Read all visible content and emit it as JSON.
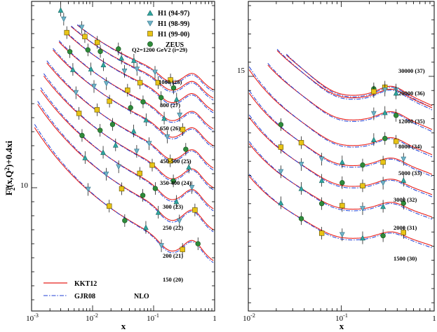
{
  "chart_data": [
    {
      "type": "line",
      "panel": "left",
      "xscale": "log",
      "xlim": [
        0.001,
        1
      ],
      "x_ticks": [
        "10^-3",
        "10^-2",
        "10^-1",
        "1"
      ],
      "y_ticks": [
        {
          "value": 10,
          "label": "10"
        }
      ],
      "xlabel": "x",
      "ylabel": "F2p(x,Q2)+0.4xi",
      "series_labels": [
        {
          "label": "Q2=1200 GeV2 (i=29)",
          "i": 29
        },
        {
          "label": "1000 (28)",
          "i": 28
        },
        {
          "label": "800 (27)",
          "i": 27
        },
        {
          "label": "650 (26)",
          "i": 26
        },
        {
          "label": "450-500 (25)",
          "i": 25
        },
        {
          "label": "350-400 (24)",
          "i": 24
        },
        {
          "label": "300 (23)",
          "i": 23
        },
        {
          "label": "250 (22)",
          "i": 22
        },
        {
          "label": "200 (21)",
          "i": 21
        },
        {
          "label": "150 (20)",
          "i": 20
        }
      ],
      "legend_data": [
        {
          "name": "H1 (94-97)",
          "marker": "triangle-up",
          "color": "#2fa7a1"
        },
        {
          "name": "H1 (98-99)",
          "marker": "triangle-down",
          "color": "#6fb3c8"
        },
        {
          "name": "H1 (99-00)",
          "marker": "square",
          "color": "#e8c416"
        },
        {
          "name": "ZEUS",
          "marker": "circle",
          "color": "#2e8b3a"
        }
      ],
      "legend_fits": [
        {
          "name": "KKT12",
          "style": "solid",
          "color": "#e8201c"
        },
        {
          "name": "GJR08",
          "style": "dash-dot",
          "color": "#1f3fd6"
        }
      ],
      "annotation": "NLO"
    },
    {
      "type": "line",
      "panel": "right",
      "xscale": "log",
      "xlim": [
        0.01,
        1
      ],
      "x_ticks": [
        "10^-2",
        "10^-1",
        "1"
      ],
      "y_ticks": [
        {
          "value": 15,
          "label": "15"
        }
      ],
      "xlabel": "x",
      "series_labels": [
        {
          "label": "30000 (37)",
          "i": 37
        },
        {
          "label": "20000 (36)",
          "i": 36
        },
        {
          "label": "12000 (35)",
          "i": 35
        },
        {
          "label": "8000 (34)",
          "i": 34
        },
        {
          "label": "5000 (33)",
          "i": 33
        },
        {
          "label": "3000 (32)",
          "i": 32
        },
        {
          "label": "2000 (31)",
          "i": 31
        },
        {
          "label": "1500 (30)",
          "i": 30
        }
      ]
    }
  ],
  "colors": {
    "kkt": "#e8201c",
    "gjr": "#1f3fd6",
    "h1_9497": "#2fa7a1",
    "h1_9899": "#6fb3c8",
    "h1_9900": "#e8c416",
    "zeus": "#2e8b3a"
  }
}
